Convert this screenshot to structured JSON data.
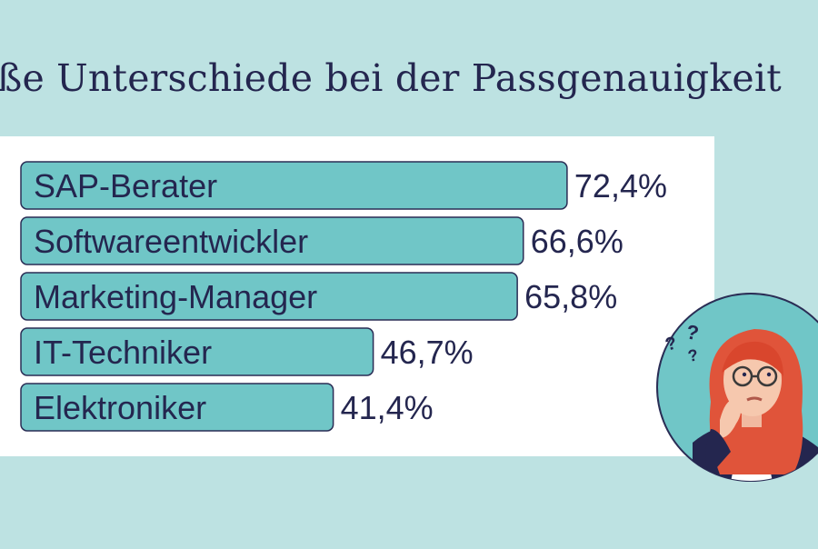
{
  "page": {
    "title": "oße Unterschiede bei der Passgenauigkeit"
  },
  "colors": {
    "background": "#bde2e2",
    "panel": "#ffffff",
    "bar_fill": "#70c6c7",
    "bar_stroke": "#2a2d55",
    "text": "#24264f"
  },
  "chart_data": {
    "type": "bar",
    "orientation": "horizontal",
    "categories": [
      "SAP-Berater",
      "Softwareentwickler",
      "Marketing-Manager",
      "IT-Techniker",
      "Elektroniker"
    ],
    "values": [
      72.4,
      66.6,
      65.8,
      46.7,
      41.4
    ],
    "value_labels": [
      "72,4%",
      "66,6%",
      "65,8%",
      "46,7%",
      "41,4%"
    ],
    "unit": "%",
    "xlim": [
      0,
      100
    ],
    "grid": false,
    "legend": "none"
  }
}
